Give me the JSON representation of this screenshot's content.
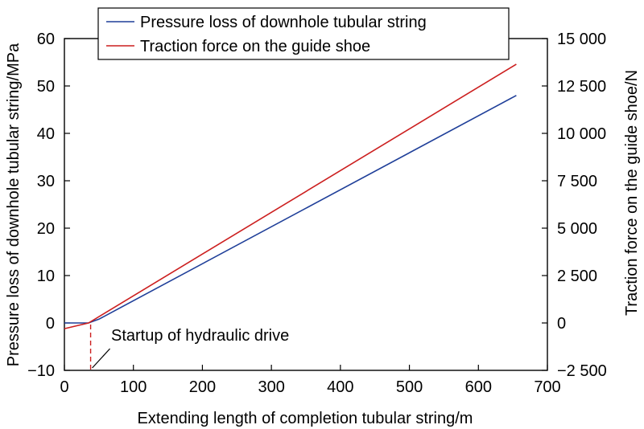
{
  "chart_data": {
    "type": "line",
    "xlabel": "Extending length of completion tubular string/m",
    "ylabel": "Pressure loss of downhole tubular string/MPa",
    "y2label": "Traction force on the guide shoe/N",
    "xlim": [
      0,
      700
    ],
    "ylim": [
      -10,
      60
    ],
    "y2lim": [
      -2500,
      15000
    ],
    "x_ticks": [
      "0",
      "100",
      "200",
      "300",
      "400",
      "500",
      "600",
      "700"
    ],
    "y_ticks": [
      "−10",
      "0",
      "10",
      "20",
      "30",
      "40",
      "50",
      "60"
    ],
    "y2_ticks": [
      "−2 500",
      "0",
      "2 500",
      "5 000",
      "7 500",
      "10 000",
      "12 500",
      "15 000"
    ],
    "grid": false,
    "legend": "top-left",
    "series": [
      {
        "name": "Pressure loss of downhole tubular string",
        "axis": "left",
        "color": "#1f3f99",
        "x": [
          0,
          35,
          50,
          655
        ],
        "y": [
          0,
          0,
          0.8,
          48
        ]
      },
      {
        "name": "Traction force on the guide shoe",
        "axis": "right",
        "color": "#cc1f1f",
        "x": [
          0,
          35,
          655
        ],
        "y": [
          -300,
          0,
          13650
        ]
      }
    ],
    "annotations": [
      {
        "text": "Startup of hydraulic drive",
        "x": 38,
        "color": "#cc1f1f",
        "style": "dashed-vertical-line"
      }
    ]
  }
}
